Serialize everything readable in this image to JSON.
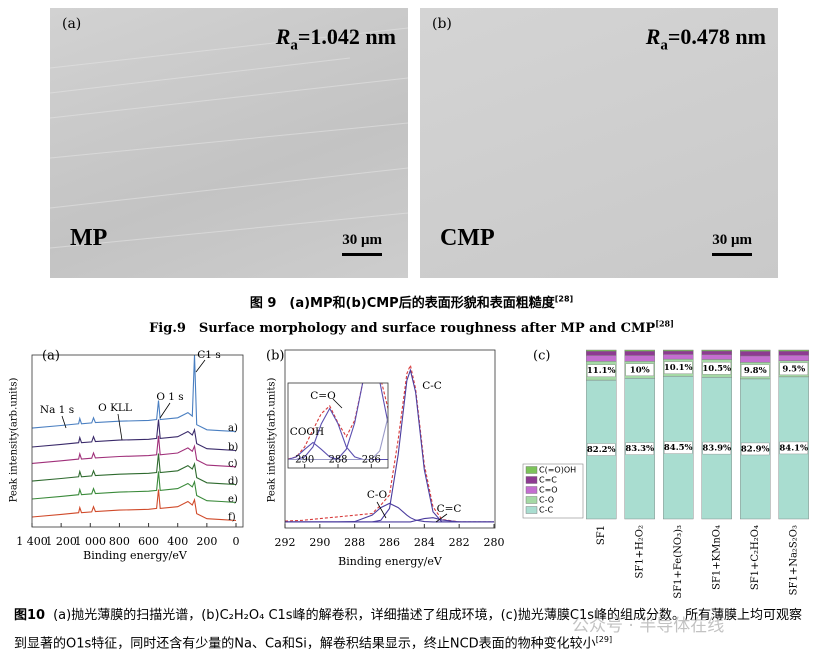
{
  "figure9": {
    "panels": [
      {
        "label": "(a)",
        "roughness": {
          "symbol": "R",
          "subscript": "a",
          "value": "=1.042 nm"
        },
        "process": "MP",
        "scale_bar": "30 μm"
      },
      {
        "label": "(b)",
        "roughness": {
          "symbol": "R",
          "subscript": "a",
          "value": "=0.478 nm"
        },
        "process": "CMP",
        "scale_bar": "30 μm"
      }
    ],
    "caption_zh": {
      "text": "图 9　(a)MP和(b)CMP后的表面形貌和表面粗糙度",
      "ref": "[28]"
    },
    "caption_en": {
      "text": "Fig.9　Surface morphology and surface roughness after MP and CMP",
      "ref": "[28]"
    }
  },
  "chart_data": [
    {
      "type": "line",
      "label": "(a)",
      "xlabel": "Binding energy/eV",
      "ylabel": "Peak intensity(arb.units)",
      "x": [
        1400,
        1200,
        1080,
        1072,
        1060,
        990,
        978,
        965,
        800,
        600,
        545,
        532,
        520,
        400,
        330,
        300,
        285,
        270,
        200,
        100,
        0
      ],
      "xlim": [
        1400,
        0
      ],
      "xticks": [
        {
          "value": 1400,
          "label": "1 400"
        },
        {
          "value": 1200,
          "label": "1 200"
        },
        {
          "value": 1000,
          "label": "1 000"
        },
        800,
        600,
        400,
        200,
        0
      ],
      "ylim": [
        0,
        10
      ],
      "series": [
        {
          "name": "a)",
          "color": "#4a7fc1",
          "values": [
            5.75,
            5.9,
            6.0,
            6.3,
            6.0,
            6.05,
            6.35,
            6.07,
            6.15,
            6.2,
            6.25,
            7.35,
            6.25,
            6.35,
            6.65,
            6.45,
            10,
            5.95,
            5.65,
            5.6,
            5.55
          ]
        },
        {
          "name": "b)",
          "color": "#3a2a6a",
          "values": [
            4.65,
            4.8,
            4.9,
            5.2,
            4.9,
            4.95,
            5.25,
            4.97,
            5.05,
            5.1,
            5.15,
            6.25,
            5.15,
            5.25,
            5.55,
            5.35,
            5.65,
            4.85,
            4.55,
            4.5,
            4.45
          ]
        },
        {
          "name": "c)",
          "color": "#a0307a",
          "values": [
            3.7,
            3.85,
            3.95,
            4.25,
            3.95,
            4.0,
            4.3,
            4.02,
            4.1,
            4.15,
            4.2,
            5.3,
            4.2,
            4.3,
            4.6,
            4.4,
            4.7,
            3.9,
            3.6,
            3.55,
            3.5
          ]
        },
        {
          "name": "d)",
          "color": "#2e6a2e",
          "values": [
            2.67,
            2.82,
            2.92,
            3.22,
            2.92,
            2.97,
            3.27,
            2.99,
            3.07,
            3.12,
            3.17,
            4.27,
            3.17,
            3.27,
            3.57,
            3.37,
            3.67,
            2.87,
            2.57,
            2.52,
            2.47
          ]
        },
        {
          "name": "e)",
          "color": "#3a8a3a",
          "values": [
            1.63,
            1.78,
            1.88,
            2.18,
            1.88,
            1.93,
            2.23,
            1.95,
            2.03,
            2.08,
            2.13,
            3.23,
            2.13,
            2.23,
            2.53,
            2.33,
            2.63,
            1.83,
            1.53,
            1.48,
            1.43
          ]
        },
        {
          "name": "f)",
          "color": "#d04a2a",
          "values": [
            0.58,
            0.73,
            0.83,
            1.13,
            0.83,
            0.88,
            1.18,
            0.9,
            0.98,
            1.03,
            1.08,
            2.18,
            1.08,
            1.18,
            1.48,
            1.28,
            1.58,
            0.78,
            0.48,
            0.43,
            0.38
          ]
        }
      ],
      "annotations": [
        "Na 1 s",
        "O KLL",
        "O 1 s",
        "C1 s"
      ]
    },
    {
      "type": "line",
      "label": "(b)",
      "xlabel": "Binding energy/eV",
      "ylabel": "Peak intensity(arb.units)",
      "x": [
        292,
        291,
        290,
        289,
        288,
        287,
        286.5,
        286,
        285.5,
        285,
        284.8,
        284.5,
        284,
        283.5,
        283,
        282,
        281,
        280
      ],
      "xlim": [
        292,
        280
      ],
      "xticks": [
        292,
        290,
        288,
        286,
        284,
        282,
        280
      ],
      "ylim": [
        0,
        10.5
      ],
      "series": [
        {
          "color": "#d83a3a",
          "dash": true,
          "values": [
            0.35,
            0.4,
            0.5,
            0.6,
            0.7,
            0.8,
            1.3,
            1.9,
            5.2,
            9.1,
            9.6,
            8.2,
            3.7,
            1.2,
            0.45,
            0.3,
            0.3,
            0.3
          ]
        },
        {
          "color": "#4b3c9e",
          "values": [
            0.3,
            0.3,
            0.3,
            0.3,
            0.3,
            0.3,
            0.4,
            1.1,
            4.3,
            8.7,
            9.3,
            8.0,
            3.4,
            0.9,
            0.3,
            0.3,
            0.3,
            0.3
          ]
        },
        {
          "color": "#4b3c9e",
          "values": [
            0.3,
            0.3,
            0.3,
            0.3,
            0.32,
            0.7,
            1.15,
            1.4,
            1.15,
            0.7,
            0.55,
            0.41,
            0.32,
            0.3,
            0.3,
            0.3,
            0.3,
            0.3
          ]
        },
        {
          "color": "#4b3c9e",
          "values": [
            0.3,
            0.3,
            0.3,
            0.3,
            0.3,
            0.3,
            0.3,
            0.3,
            0.3,
            0.3,
            0.3,
            0.38,
            0.5,
            0.55,
            0.42,
            0.3,
            0.3,
            0.3
          ]
        }
      ],
      "annotations": [
        "C-C",
        "C-O",
        "C=C"
      ]
    },
    {
      "type": "line",
      "x": [
        291,
        290.5,
        290,
        289.5,
        289,
        288.5,
        288,
        287.5,
        287,
        286.5,
        286,
        285.5,
        285
      ],
      "xlim": [
        291,
        285
      ],
      "xticks": [
        290,
        288,
        286
      ],
      "ylim": [
        0,
        10
      ],
      "series": [
        {
          "color": "#d83a3a",
          "dash": true,
          "values": [
            1.05,
            1.3,
            2.5,
            4.5,
            6.4,
            7.3,
            5.3,
            3.7,
            5.6,
            10.2,
            13,
            11,
            7
          ]
        },
        {
          "color": "#5b4fb0",
          "values": [
            1.0,
            1.3,
            2.2,
            3.0,
            2.2,
            1.3,
            1.0,
            1,
            1,
            1,
            1,
            1,
            1
          ]
        },
        {
          "color": "#5b4fb0",
          "values": [
            1,
            1,
            1.3,
            2.5,
            5.2,
            7,
            5.2,
            2.5,
            1.3,
            1,
            1,
            1,
            1
          ]
        },
        {
          "color": "#5b4fb0",
          "values": [
            1,
            1,
            1,
            1,
            1,
            1,
            1.1,
            2.2,
            5.3,
            10.2,
            13,
            10.2,
            5.3
          ]
        },
        {
          "color": "#9a9ac8",
          "values": [
            1,
            1,
            1,
            1,
            1,
            1,
            1,
            1,
            1,
            1,
            1,
            2,
            6
          ]
        }
      ],
      "annotations": [
        "C=O",
        "COOH"
      ]
    },
    {
      "type": "bar",
      "stacked": true,
      "label": "(c)",
      "categories": [
        "SF1",
        "SF1+H₂O₂",
        "SF1+Fe(NO₃)₃",
        "SF1+KMnO₄",
        "SF1+C₂H₂O₄",
        "SF1+Na₂S₂O₃"
      ],
      "ylim": [
        0,
        100
      ],
      "series": [
        {
          "name": "C(=O)OH",
          "color": "#7cc35a",
          "values": [
            0.7,
            0.7,
            0.6,
            0.6,
            0.8,
            0.7
          ]
        },
        {
          "name": "C=C",
          "color": "#8e3a92",
          "values": [
            2.5,
            2.5,
            2,
            2.1,
            2.7,
            2.4
          ]
        },
        {
          "name": "C=O",
          "color": "#c46ed0",
          "values": [
            3.5,
            3.5,
            2.8,
            2.9,
            3.8,
            3.3
          ]
        },
        {
          "name": "C-O",
          "color": "#a5d9a5",
          "values": [
            11.1,
            10,
            10.1,
            10.5,
            9.8,
            9.5
          ],
          "value_labels": [
            "11.1%",
            "10%",
            "10.1%",
            "10.5%",
            "9.8%",
            "9.5%"
          ]
        },
        {
          "name": "C-C",
          "color": "#a9ddd0",
          "values": [
            82.2,
            83.3,
            84.5,
            83.9,
            82.9,
            84.1
          ],
          "value_labels": [
            "82.2%",
            "83.3%",
            "84.5%",
            "83.9%",
            "82.9%",
            "84.1%"
          ]
        }
      ]
    }
  ],
  "figure10": {
    "caption": {
      "label": "图10",
      "text": "(a)抛光薄膜的扫描光谱，(b)C₂H₂O₄ C1s峰的解卷积，详细描述了组成环境，(c)抛光薄膜C1s峰的组成分数。所有薄膜上均可观察到显著的O1s特征，同时还含有少量的Na、Ca和Si，解卷积结果显示，终止NCD表面的物种变化较小",
      "ref": "[29]"
    },
    "watermark": "公众号 · 半导体在线"
  }
}
